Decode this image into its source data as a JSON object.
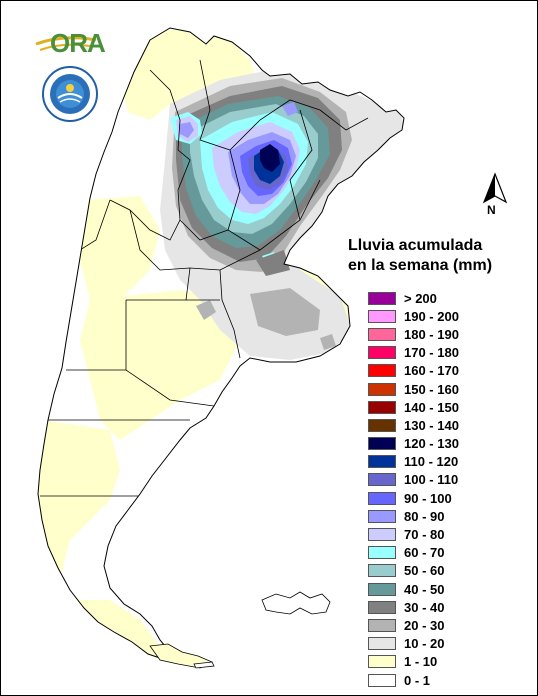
{
  "logo": {
    "text": "ORA",
    "seal_name": "servicio-meteorologico-seal"
  },
  "north_arrow": {
    "label": "N"
  },
  "legend": {
    "title_line1": "Lluvia acumulada",
    "title_line2": "en la semana (mm)",
    "items": [
      {
        "label": "> 200",
        "color": "#990099"
      },
      {
        "label": "190 - 200",
        "color": "#ff99ff"
      },
      {
        "label": "180 - 190",
        "color": "#ff6699"
      },
      {
        "label": "170 - 180",
        "color": "#ff0066"
      },
      {
        "label": "160 - 170",
        "color": "#ff0000"
      },
      {
        "label": "150 - 160",
        "color": "#cc3300"
      },
      {
        "label": "140 - 150",
        "color": "#990000"
      },
      {
        "label": "130 - 140",
        "color": "#663300"
      },
      {
        "label": "120 - 130",
        "color": "#000055"
      },
      {
        "label": "110 - 120",
        "color": "#003399"
      },
      {
        "label": "100 - 110",
        "color": "#6666cc"
      },
      {
        "label": "90 - 100",
        "color": "#6666ff"
      },
      {
        "label": "80 - 90",
        "color": "#9999ff"
      },
      {
        "label": "70 - 80",
        "color": "#ccccff"
      },
      {
        "label": "60 - 70",
        "color": "#99ffff"
      },
      {
        "label": "50 - 60",
        "color": "#99cccc"
      },
      {
        "label": "40 - 50",
        "color": "#669999"
      },
      {
        "label": "30 - 40",
        "color": "#808080"
      },
      {
        "label": "20 - 30",
        "color": "#b3b3b3"
      },
      {
        "label": "10 - 20",
        "color": "#e6e6e6"
      },
      {
        "label": "1 - 10",
        "color": "#ffffcc"
      },
      {
        "label": "0 - 1",
        "color": "#ffffff"
      }
    ]
  }
}
